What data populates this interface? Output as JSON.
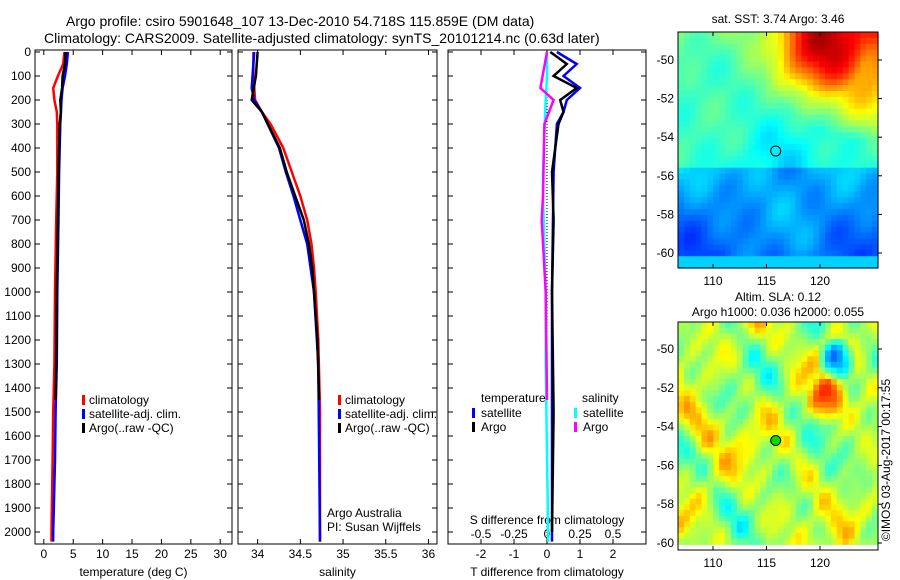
{
  "title_line1": "Argo profile: csiro 5901648_107 13-Dec-2010 54.718S 115.859E (DM data)",
  "title_line2": "Climatology: CARS2009. Satellite-adjusted climatology: synTS_20101214.nc (0.63d later)",
  "credit": "©IMOS 03-Aug-2017 00:17:55",
  "colors": {
    "climatology": "#ff0000",
    "satellite": "#0000ff",
    "argo": "#000000",
    "sal_satellite": "#00ffff",
    "sal_argo": "#ff00ff"
  },
  "chart_data": [
    {
      "type": "line",
      "name": "temperature",
      "xlabel": "temperature (deg C)",
      "xlim": [
        -1.5,
        32
      ],
      "ylim": [
        2050,
        0
      ],
      "xticks": [
        "0",
        "5",
        "10",
        "15",
        "20",
        "25",
        "30"
      ],
      "xtickvals": [
        0,
        5,
        10,
        15,
        20,
        25,
        30
      ],
      "yticks": [
        "0",
        "100",
        "200",
        "300",
        "400",
        "500",
        "600",
        "700",
        "800",
        "900",
        "1000",
        "1100",
        "1200",
        "1300",
        "1400",
        "1500",
        "1600",
        "1700",
        "1800",
        "1900",
        "2000"
      ],
      "legend": [
        "climatology",
        "satellite-adj. clim.",
        "Argo(..raw -QC)"
      ],
      "series": [
        {
          "name": "climatology",
          "color": "#ff0000",
          "depth": [
            0,
            50,
            100,
            150,
            200,
            250,
            300,
            500,
            700,
            1000,
            1300,
            1500,
            1700,
            2000,
            2040
          ],
          "values": [
            3.5,
            3.3,
            2.4,
            1.6,
            1.8,
            2.2,
            2.3,
            2.3,
            2.1,
            1.9,
            1.8,
            1.6,
            1.5,
            1.3,
            1.3
          ]
        },
        {
          "name": "satellite-adj. clim.",
          "color": "#0000ff",
          "depth": [
            0,
            50,
            100,
            150,
            200,
            250,
            300,
            500,
            700,
            1000,
            1300,
            1500,
            1700,
            2000,
            2040
          ],
          "values": [
            4.1,
            3.9,
            3.6,
            3.2,
            3.0,
            2.9,
            2.8,
            2.6,
            2.5,
            2.3,
            2.2,
            2.0,
            1.9,
            1.6,
            1.6
          ]
        },
        {
          "name": "Argo(..raw -QC)",
          "color": "#000000",
          "depth": [
            0,
            50,
            100,
            150,
            200,
            250,
            300,
            500,
            700,
            1000,
            1300,
            1450
          ],
          "values": [
            3.7,
            3.6,
            3.2,
            3.1,
            2.8,
            2.9,
            2.7,
            2.5,
            2.4,
            2.2,
            2.1,
            2.0
          ]
        }
      ]
    },
    {
      "type": "line",
      "name": "salinity",
      "xlabel": "salinity",
      "xlim": [
        33.77,
        36.1
      ],
      "ylim": [
        2050,
        0
      ],
      "xticks": [
        "34",
        "34.5",
        "35",
        "35.5",
        "36"
      ],
      "xtickvals": [
        34,
        34.5,
        35,
        35.5,
        36
      ],
      "legend": [
        "climatology",
        "satellite-adj. clim.",
        "Argo(..raw -QC)"
      ],
      "annotation": [
        "Argo Australia",
        "PI: Susan Wijffels"
      ],
      "series": [
        {
          "name": "climatology",
          "color": "#ff0000",
          "depth": [
            0,
            100,
            200,
            250,
            300,
            400,
            500,
            600,
            700,
            800,
            900,
            1000,
            1200,
            1500,
            2040
          ],
          "values": [
            33.95,
            33.95,
            33.97,
            34.05,
            34.15,
            34.3,
            34.4,
            34.5,
            34.58,
            34.63,
            34.66,
            34.68,
            34.71,
            34.73,
            34.73
          ]
        },
        {
          "name": "satellite-adj. clim.",
          "color": "#0000ff",
          "depth": [
            0,
            150,
            200,
            250,
            400,
            500,
            600,
            700,
            800,
            1000,
            1300,
            2040
          ],
          "values": [
            33.96,
            33.93,
            33.96,
            34.05,
            34.25,
            34.33,
            34.42,
            34.5,
            34.58,
            34.66,
            34.71,
            34.73
          ]
        },
        {
          "name": "Argo(..raw -QC)",
          "color": "#000000",
          "depth": [
            0,
            100,
            200,
            250,
            400,
            500,
            600,
            700,
            800,
            900,
            1000,
            1200,
            1450
          ],
          "values": [
            34.0,
            33.98,
            33.93,
            34.05,
            34.26,
            34.34,
            34.44,
            34.54,
            34.6,
            34.64,
            34.66,
            34.7,
            34.72
          ]
        }
      ]
    },
    {
      "type": "line",
      "name": "difference",
      "xlabel": "T difference from climatology",
      "x2label": "S difference from climatology",
      "xlim": [
        -3,
        3
      ],
      "x2lim": [
        -0.75,
        0.75
      ],
      "ylim": [
        2050,
        0
      ],
      "xticks": [
        "-2",
        "-1",
        "0",
        "1",
        "2"
      ],
      "xtickvals": [
        -2,
        -1,
        0,
        1,
        2
      ],
      "x2ticks": [
        "-0.5",
        "-0.25",
        "0",
        "0.25",
        "0.5"
      ],
      "x2tickvals": [
        -0.5,
        -0.25,
        0,
        0.25,
        0.5
      ],
      "legend_headers": [
        "temperature",
        "salinity"
      ],
      "legend": [
        "satellite",
        "Argo",
        "satellite",
        "Argo"
      ],
      "series": [
        {
          "name": "T satellite",
          "color": "#0000ff",
          "axis": "T",
          "depth": [
            0,
            50,
            100,
            150,
            200,
            250,
            300,
            500,
            1000,
            2040
          ],
          "values": [
            0.3,
            0.9,
            0.5,
            1.0,
            0.6,
            0.5,
            0.3,
            0.2,
            0.15,
            0.15
          ]
        },
        {
          "name": "T Argo",
          "color": "#000000",
          "axis": "T",
          "depth": [
            0,
            50,
            100,
            150,
            200,
            250,
            300,
            500,
            700,
            1000,
            1500,
            2000
          ],
          "values": [
            0.1,
            0.6,
            0.2,
            0.9,
            0.4,
            0.5,
            0.35,
            0.15,
            0.2,
            0.15,
            0.2,
            0.15
          ]
        },
        {
          "name": "S satellite",
          "color": "#00ffff",
          "axis": "S",
          "depth": [
            0,
            100,
            200,
            500,
            600,
            1000,
            1300,
            2040
          ],
          "values": [
            0,
            0,
            -0.01,
            -0.03,
            -0.03,
            -0.01,
            -0.01,
            0.01
          ]
        },
        {
          "name": "S Argo",
          "color": "#ff00ff",
          "axis": "S",
          "depth": [
            0,
            150,
            200,
            300,
            600,
            700,
            1000,
            1450
          ],
          "values": [
            0,
            -0.05,
            0.05,
            -0.02,
            -0.03,
            -0.04,
            -0.01,
            0
          ]
        }
      ]
    },
    {
      "type": "heatmap",
      "name": "sst-map",
      "title": "sat. SST: 3.74 Argo: 3.46",
      "xticks": [
        "110",
        "115",
        "120"
      ],
      "yticks": [
        "-50",
        "-52",
        "-54",
        "-56",
        "-58",
        "-60"
      ],
      "marker": {
        "lon": 115.859,
        "lat": -54.718
      }
    },
    {
      "type": "heatmap",
      "name": "sla-map",
      "title_line1": "Altim. SLA: 0.12",
      "title_line2": "Argo h1000: 0.036 h2000: 0.055",
      "xticks": [
        "110",
        "115",
        "120"
      ],
      "yticks": [
        "-50",
        "-52",
        "-54",
        "-56",
        "-58",
        "-60"
      ],
      "marker": {
        "lon": 115.859,
        "lat": -54.718
      }
    }
  ]
}
